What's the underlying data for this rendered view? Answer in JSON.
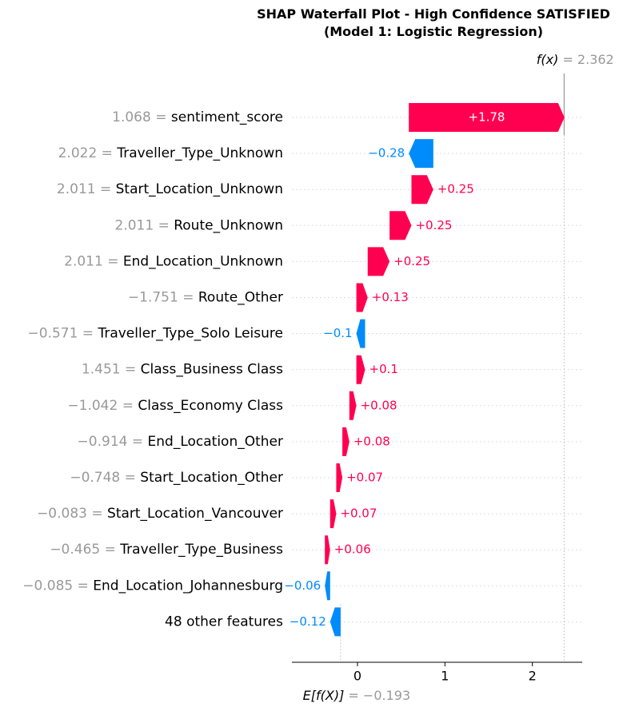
{
  "chart_data": {
    "type": "waterfall",
    "title": "SHAP Waterfall Plot - High Confidence SATISFIED",
    "subtitle": "(Model 1: Logistic Regression)",
    "base_value": -0.193,
    "base_label": "E[f(X)]",
    "base_value_text": "= −0.193",
    "output_value": 2.362,
    "output_label": "f(x)",
    "output_value_text": "= 2.362",
    "xlim": [
      -0.75,
      2.57
    ],
    "xticks": [
      0,
      1,
      2
    ],
    "xtick_labels": [
      "0",
      "1",
      "2"
    ],
    "colors": {
      "positive": "#ff0051",
      "negative": "#008bfb",
      "feature_value": "#999999",
      "axis": "#000000",
      "guide": "#bbbbbb"
    },
    "features": [
      {
        "value": "1.068",
        "name": "sentiment_score",
        "shap": 1.78,
        "label": "+1.78"
      },
      {
        "value": "2.022",
        "name": "Traveller_Type_Unknown",
        "shap": -0.28,
        "label": "−0.28"
      },
      {
        "value": "2.011",
        "name": "Start_Location_Unknown",
        "shap": 0.25,
        "label": "+0.25"
      },
      {
        "value": "2.011",
        "name": "Route_Unknown",
        "shap": 0.25,
        "label": "+0.25"
      },
      {
        "value": "2.011",
        "name": "End_Location_Unknown",
        "shap": 0.25,
        "label": "+0.25"
      },
      {
        "value": "−1.751",
        "name": "Route_Other",
        "shap": 0.13,
        "label": "+0.13"
      },
      {
        "value": "−0.571",
        "name": "Traveller_Type_Solo Leisure",
        "shap": -0.1,
        "label": "−0.1"
      },
      {
        "value": "1.451",
        "name": "Class_Business Class",
        "shap": 0.1,
        "label": "+0.1"
      },
      {
        "value": "−1.042",
        "name": "Class_Economy Class",
        "shap": 0.08,
        "label": "+0.08"
      },
      {
        "value": "−0.914",
        "name": "End_Location_Other",
        "shap": 0.08,
        "label": "+0.08"
      },
      {
        "value": "−0.748",
        "name": "Start_Location_Other",
        "shap": 0.07,
        "label": "+0.07"
      },
      {
        "value": "−0.083",
        "name": "Start_Location_Vancouver",
        "shap": 0.07,
        "label": "+0.07"
      },
      {
        "value": "−0.465",
        "name": "Traveller_Type_Business",
        "shap": 0.06,
        "label": "+0.06"
      },
      {
        "value": "−0.085",
        "name": "End_Location_Johannesburg",
        "shap": -0.06,
        "label": "−0.06"
      },
      {
        "value": "",
        "name": "48 other features",
        "shap": -0.12,
        "label": "−0.12"
      }
    ]
  }
}
